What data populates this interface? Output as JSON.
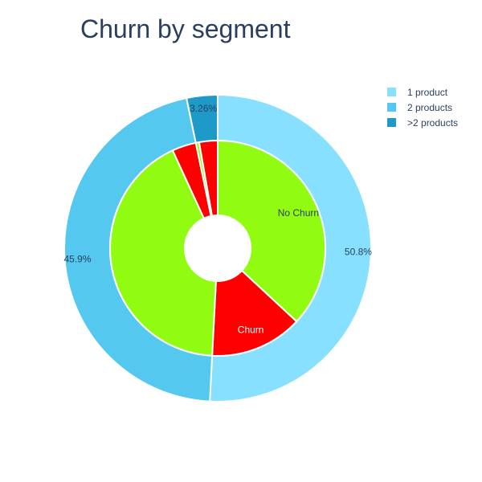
{
  "title": "Churn by segment",
  "chart_data": {
    "type": "pie",
    "title": "Churn by segment",
    "legend_placement": "top-right",
    "outer_ring": {
      "labels": [
        "1 product",
        "2 products",
        ">2 products"
      ],
      "values": [
        50.8,
        45.9,
        3.26
      ],
      "value_labels": [
        "50.8%",
        "45.9%",
        "3.26%"
      ],
      "colors": [
        "#87e0ff",
        "#54c8ee",
        "#1f99c7"
      ]
    },
    "inner_ring": {
      "segments": [
        {
          "product": "1 product",
          "label": "No Churn",
          "share": 36.9,
          "color": "#91fc12",
          "text_color": "#2a3f5f"
        },
        {
          "product": "1 product",
          "label": "Churn",
          "share": 13.9,
          "color": "#ff0000",
          "text_color": "#ffffff"
        },
        {
          "product": "2 products",
          "label": "",
          "share": 42.3,
          "color": "#91fc12",
          "text_color": "#2a3f5f"
        },
        {
          "product": "2 products",
          "label": "",
          "share": 3.6,
          "color": "#ff0000",
          "text_color": "#ffffff"
        },
        {
          "product": ">2 products",
          "label": "",
          "share": 0.5,
          "color": "#91fc12",
          "text_color": "#2a3f5f"
        },
        {
          "product": ">2 products",
          "label": "",
          "share": 2.76,
          "color": "#ff0000",
          "text_color": "#ffffff"
        }
      ]
    }
  },
  "legend": {
    "items": [
      {
        "label": "1 product",
        "color": "#87e0ff"
      },
      {
        "label": "2 products",
        "color": "#54c8ee"
      },
      {
        "label": ">2 products",
        "color": "#1f99c7"
      }
    ]
  }
}
